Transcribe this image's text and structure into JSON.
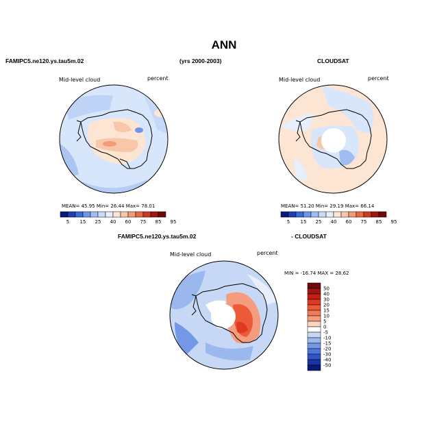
{
  "figure": {
    "title": "ANN",
    "left_header": "FAMIPC5.ne120.ys.tau5m.02",
    "center_header": "(yrs 2000-2003)",
    "right_header": "CLOUDSAT",
    "diff_header_left": "FAMIPC5.ne120.ys.tau5m.02",
    "diff_header_right": "- CLOUDSAT"
  },
  "colors": {
    "map_bg": "#d8e7fb",
    "coast": "#000000",
    "pole_hole": "#ffffff"
  },
  "chart_data": [
    {
      "type": "heatmap",
      "projection": "south-polar-stereographic",
      "variable": "Mid-level cloud",
      "units": "percent",
      "stats": {
        "mean_label": "MEAN=",
        "mean": "45.95",
        "min_label": "Min=",
        "min": "26.44",
        "max_label": "Max=",
        "max": "78.01"
      },
      "colorbar": {
        "orientation": "horizontal",
        "tick_labels": [
          "5",
          "15",
          "25",
          "40",
          "60",
          "75",
          "85",
          "95"
        ],
        "colors": [
          "#0a1a7a",
          "#1f3fb0",
          "#3d6bd8",
          "#6f96e8",
          "#9fbdf2",
          "#c8dbf8",
          "#e6effb",
          "#fde5d4",
          "#f8c6a8",
          "#f29b76",
          "#e66a45",
          "#cc3a22",
          "#a01610",
          "#6e0a0a"
        ]
      }
    },
    {
      "type": "heatmap",
      "projection": "south-polar-stereographic",
      "variable": "Mid-level cloud",
      "units": "percent",
      "stats": {
        "mean_label": "MEAN=",
        "mean": "51.20",
        "min_label": "Min=",
        "min": "29.19",
        "max_label": "Max=",
        "max": "66.14"
      },
      "colorbar": {
        "orientation": "horizontal",
        "tick_labels": [
          "5",
          "15",
          "25",
          "40",
          "60",
          "75",
          "85",
          "95"
        ],
        "colors": [
          "#0a1a7a",
          "#1f3fb0",
          "#3d6bd8",
          "#6f96e8",
          "#9fbdf2",
          "#c8dbf8",
          "#e6effb",
          "#fde5d4",
          "#f8c6a8",
          "#f29b76",
          "#e66a45",
          "#cc3a22",
          "#a01610",
          "#6e0a0a"
        ]
      }
    },
    {
      "type": "heatmap",
      "projection": "south-polar-stereographic",
      "variable": "Mid-level cloud",
      "units": "percent",
      "stats": {
        "min_label": "MIN =",
        "min": "-16.74",
        "max_label": "MAX =",
        "max": "28.62"
      },
      "colorbar": {
        "orientation": "vertical",
        "tick_labels": [
          "50",
          "40",
          "30",
          "20",
          "15",
          "10",
          "5",
          "0",
          "-5",
          "-10",
          "-15",
          "-20",
          "-30",
          "-40",
          "-50"
        ],
        "colors": [
          "#6e0a0a",
          "#a01610",
          "#c41e14",
          "#de3a22",
          "#ec5a3a",
          "#f27a58",
          "#f59c7e",
          "#fbd5c0",
          "#ffffff",
          "#c6d8f5",
          "#9bb8ee",
          "#7498e6",
          "#4f76dc",
          "#2f54c8",
          "#1a34a8",
          "#0a1a7a"
        ]
      }
    }
  ]
}
